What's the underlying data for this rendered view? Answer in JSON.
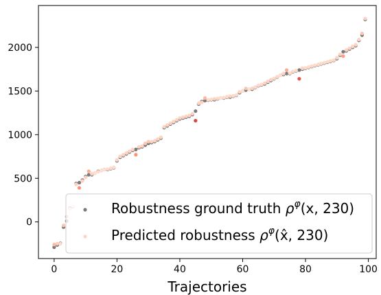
{
  "chart_data": {
    "type": "scatter",
    "xlabel": "Trajectories",
    "ylabel": "",
    "xlim": [
      -5,
      102.5
    ],
    "ylim": [
      -420,
      2480
    ],
    "xticks": [
      0,
      20,
      40,
      60,
      80,
      100
    ],
    "yticks": [
      0,
      500,
      1000,
      1500,
      2000
    ],
    "legend_position": "lower-right",
    "series": [
      {
        "name": "Robustness ground truth ρ^φ(x, 230)",
        "legend_base": "Robustness ground truth ",
        "legend_rho": "ρ",
        "legend_sup": "φ",
        "legend_args": "(x, 230)",
        "color": "#7a7a7a",
        "x": [
          0,
          1,
          2,
          3,
          4,
          5,
          6,
          7,
          8,
          9,
          10,
          11,
          12,
          13,
          14,
          15,
          16,
          17,
          18,
          19,
          20,
          21,
          22,
          23,
          24,
          25,
          26,
          27,
          28,
          29,
          30,
          31,
          32,
          33,
          34,
          35,
          36,
          37,
          38,
          39,
          40,
          41,
          42,
          43,
          44,
          45,
          46,
          47,
          48,
          49,
          50,
          51,
          52,
          53,
          54,
          55,
          56,
          57,
          58,
          59,
          60,
          61,
          62,
          63,
          64,
          65,
          66,
          67,
          68,
          69,
          70,
          71,
          72,
          73,
          74,
          75,
          76,
          77,
          78,
          79,
          80,
          81,
          82,
          83,
          84,
          85,
          86,
          87,
          88,
          89,
          90,
          91,
          92,
          93,
          94,
          95,
          96,
          97,
          98,
          99
        ],
        "y": [
          -290,
          -265,
          -245,
          -60,
          10,
          160,
          175,
          440,
          450,
          480,
          520,
          540,
          540,
          560,
          580,
          590,
          600,
          600,
          610,
          620,
          700,
          740,
          760,
          780,
          800,
          820,
          830,
          850,
          860,
          880,
          900,
          910,
          920,
          940,
          960,
          1080,
          1100,
          1120,
          1140,
          1160,
          1180,
          1190,
          1200,
          1210,
          1230,
          1270,
          1350,
          1380,
          1390,
          1395,
          1400,
          1400,
          1410,
          1420,
          1420,
          1430,
          1430,
          1440,
          1450,
          1480,
          1500,
          1510,
          1520,
          1520,
          1540,
          1560,
          1570,
          1580,
          1600,
          1620,
          1640,
          1660,
          1680,
          1690,
          1700,
          1700,
          1720,
          1730,
          1740,
          1750,
          1760,
          1770,
          1780,
          1790,
          1800,
          1810,
          1820,
          1830,
          1840,
          1850,
          1870,
          1910,
          1950,
          1960,
          1980,
          2000,
          2020,
          2080,
          2140,
          2320
        ]
      },
      {
        "name": "Predicted robustness ρ^φ(x̂, 230)",
        "legend_base": "Predicted robustness ",
        "legend_rho": "ρ",
        "legend_sup": "φ",
        "legend_args": "(x̂, 230)",
        "color": "#fdd5c0",
        "x": [
          0,
          1,
          2,
          3,
          4,
          5,
          6,
          7,
          8,
          9,
          10,
          11,
          12,
          13,
          14,
          15,
          16,
          17,
          18,
          19,
          20,
          21,
          22,
          23,
          24,
          25,
          26,
          27,
          28,
          29,
          30,
          31,
          32,
          33,
          34,
          35,
          36,
          37,
          38,
          39,
          40,
          41,
          42,
          43,
          44,
          45,
          46,
          47,
          48,
          49,
          50,
          51,
          52,
          53,
          54,
          55,
          56,
          57,
          58,
          59,
          60,
          61,
          62,
          63,
          64,
          65,
          66,
          67,
          68,
          69,
          70,
          71,
          72,
          73,
          74,
          75,
          76,
          77,
          78,
          79,
          80,
          81,
          82,
          83,
          84,
          85,
          86,
          87,
          88,
          89,
          90,
          91,
          92,
          93,
          94,
          95,
          96,
          97,
          98,
          99
        ],
        "y": [
          -260,
          -250,
          -250,
          -40,
          60,
          150,
          180,
          430,
          390,
          470,
          510,
          580,
          550,
          560,
          575,
          590,
          600,
          605,
          615,
          625,
          710,
          750,
          770,
          790,
          810,
          830,
          770,
          860,
          870,
          900,
          920,
          920,
          930,
          950,
          970,
          1090,
          1110,
          1130,
          1150,
          1170,
          1190,
          1200,
          1210,
          1220,
          1240,
          1160,
          1360,
          1370,
          1420,
          1400,
          1405,
          1410,
          1415,
          1420,
          1425,
          1435,
          1440,
          1445,
          1455,
          1490,
          1500,
          1530,
          1520,
          1530,
          1545,
          1565,
          1575,
          1590,
          1610,
          1630,
          1645,
          1665,
          1680,
          1700,
          1740,
          1705,
          1725,
          1735,
          1640,
          1760,
          1765,
          1775,
          1785,
          1795,
          1805,
          1815,
          1825,
          1835,
          1845,
          1855,
          1880,
          1920,
          1900,
          1970,
          1990,
          2010,
          2030,
          2090,
          2160,
          2330
        ]
      }
    ]
  }
}
